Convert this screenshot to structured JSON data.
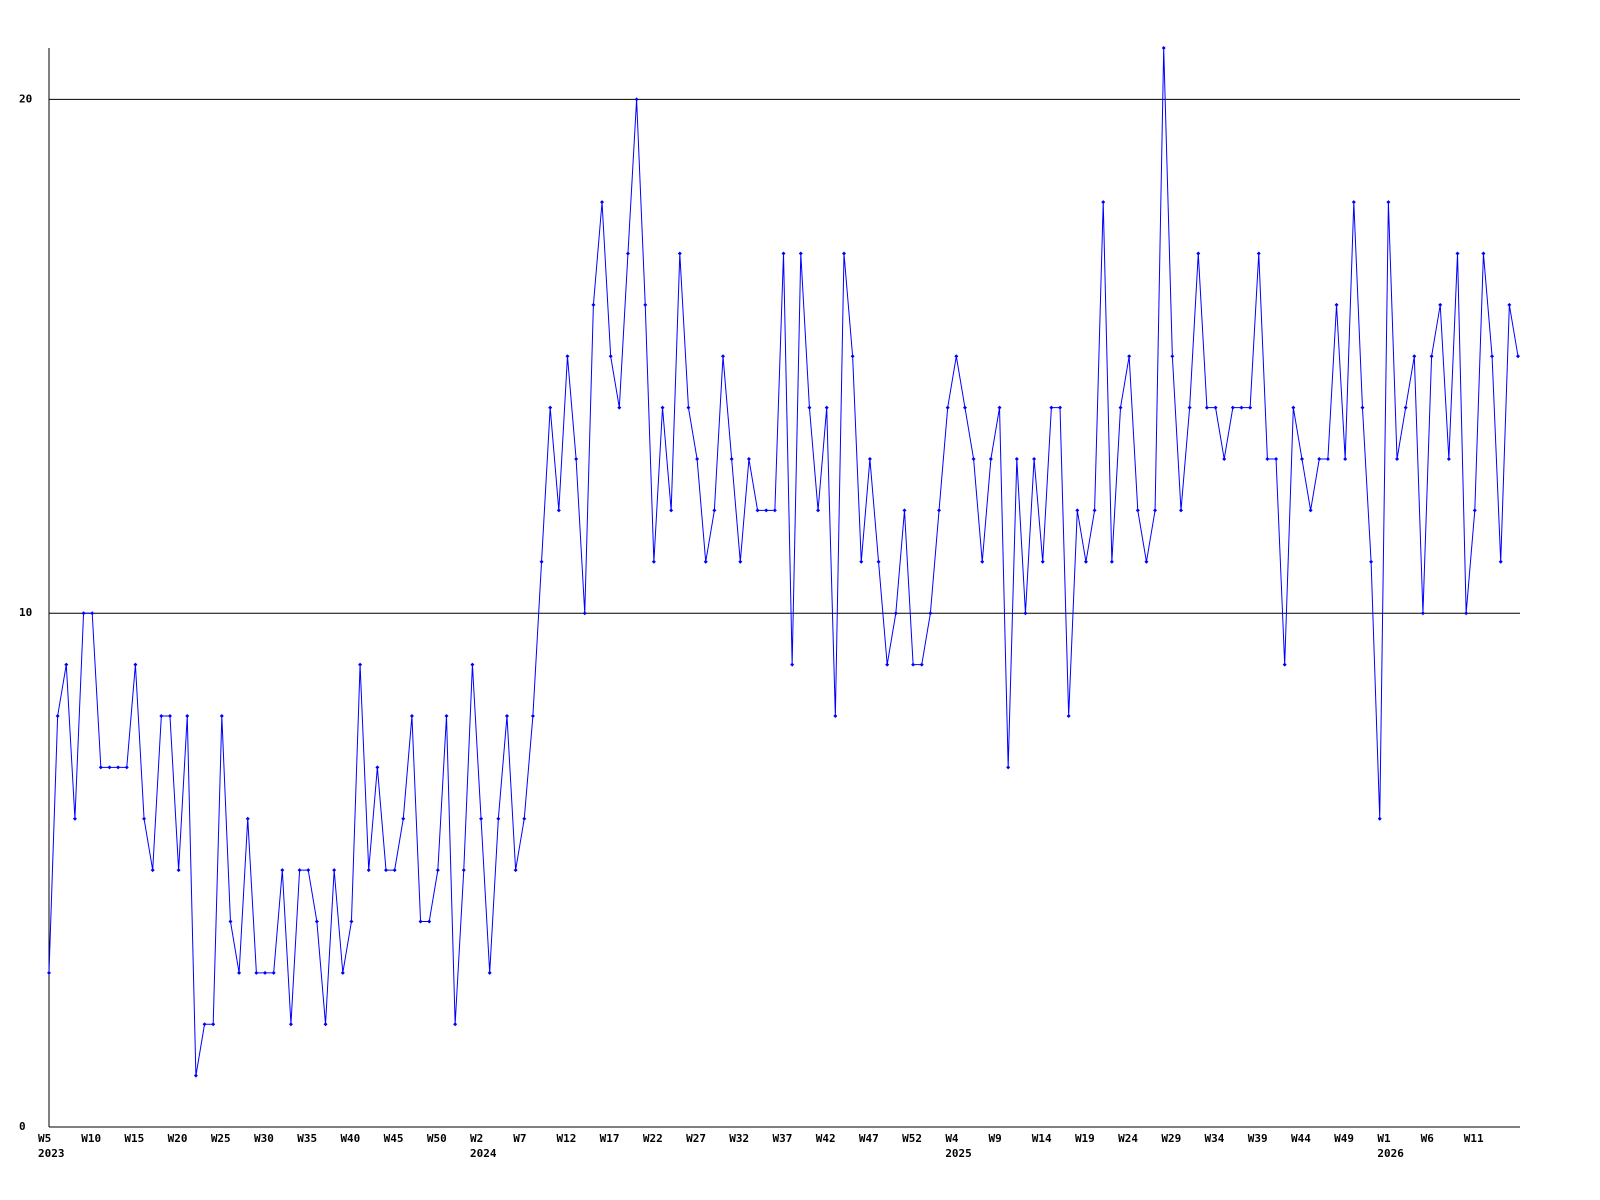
{
  "chart_data": {
    "type": "line",
    "categories": [
      "W5",
      null,
      null,
      null,
      null,
      "W10",
      null,
      null,
      null,
      null,
      "W15",
      null,
      null,
      null,
      null,
      "W20",
      null,
      null,
      null,
      null,
      "W25",
      null,
      null,
      null,
      null,
      "W30",
      null,
      null,
      null,
      null,
      "W35",
      null,
      null,
      null,
      null,
      "W40",
      null,
      null,
      null,
      null,
      "W45",
      null,
      null,
      null,
      null,
      "W50",
      null,
      null,
      null,
      null,
      "W2",
      null,
      null,
      null,
      null,
      "W7",
      null,
      null,
      null,
      null,
      "W12",
      null,
      null,
      null,
      null,
      "W17",
      null,
      null,
      null,
      null,
      "W22",
      null,
      null,
      null,
      null,
      "W27",
      null,
      null,
      null,
      null,
      "W32",
      null,
      null,
      null,
      null,
      "W37",
      null,
      null,
      null,
      null,
      "W42",
      null,
      null,
      null,
      null,
      "W47",
      null,
      null,
      null,
      null,
      "W52",
      null,
      null,
      null,
      null,
      "W4",
      null,
      null,
      null,
      null,
      "W9",
      null,
      null,
      null,
      null,
      "W14",
      null,
      null,
      null,
      null,
      "W19",
      null,
      null,
      null,
      null,
      "W24",
      null,
      null,
      null,
      null,
      "W29",
      null,
      null,
      null,
      null,
      "W34",
      null,
      null,
      null,
      null,
      "W39",
      null,
      null,
      null,
      null,
      "W44",
      null,
      null,
      null,
      null,
      "W49",
      null,
      null,
      null,
      null,
      "W1",
      null,
      null,
      null,
      null,
      "W6",
      null,
      null,
      null,
      null,
      "W11",
      null,
      null,
      null,
      null,
      null
    ],
    "category_years": [
      "2023",
      null,
      null,
      null,
      null,
      null,
      null,
      null,
      null,
      null,
      null,
      null,
      null,
      null,
      null,
      null,
      null,
      null,
      null,
      null,
      null,
      null,
      null,
      null,
      null,
      null,
      null,
      null,
      null,
      null,
      null,
      null,
      null,
      null,
      null,
      null,
      null,
      null,
      null,
      null,
      null,
      null,
      null,
      null,
      null,
      null,
      null,
      null,
      null,
      null,
      "2024",
      null,
      null,
      null,
      null,
      null,
      null,
      null,
      null,
      null,
      null,
      null,
      null,
      null,
      null,
      null,
      null,
      null,
      null,
      null,
      null,
      null,
      null,
      null,
      null,
      null,
      null,
      null,
      null,
      null,
      null,
      null,
      null,
      null,
      null,
      null,
      null,
      null,
      null,
      null,
      null,
      null,
      null,
      null,
      null,
      null,
      null,
      null,
      null,
      null,
      null,
      null,
      null,
      null,
      null,
      "2025",
      null,
      null,
      null,
      null,
      null,
      null,
      null,
      null,
      null,
      null,
      null,
      null,
      null,
      null,
      null,
      null,
      null,
      null,
      null,
      null,
      null,
      null,
      null,
      null,
      null,
      null,
      null,
      null,
      null,
      null,
      null,
      null,
      null,
      null,
      null,
      null,
      null,
      null,
      null,
      null,
      null,
      null,
      null,
      null,
      null,
      null,
      null,
      null,
      null,
      "2026",
      null,
      null,
      null,
      null,
      null,
      null,
      null,
      null,
      null,
      null,
      null,
      null,
      null,
      null,
      null
    ],
    "series": [
      {
        "color": "#0000ff",
        "values": [
          3,
          8,
          9,
          6,
          10,
          10,
          7,
          7,
          7,
          7,
          9,
          6,
          5,
          8,
          8,
          5,
          8,
          1,
          2,
          2,
          8,
          4,
          3,
          6,
          3,
          3,
          3,
          5,
          2,
          5,
          5,
          4,
          2,
          5,
          3,
          4,
          9,
          5,
          7,
          5,
          5,
          6,
          8,
          4,
          4,
          5,
          8,
          2,
          5,
          9,
          6,
          3,
          6,
          8,
          5,
          6,
          8,
          11,
          14,
          12,
          15,
          13,
          10,
          16,
          18,
          15,
          14,
          17,
          20,
          16,
          11,
          14,
          12,
          17,
          14,
          13,
          11,
          12,
          15,
          13,
          11,
          13,
          12,
          12,
          12,
          17,
          9,
          17,
          14,
          12,
          14,
          8,
          17,
          15,
          11,
          13,
          11,
          9,
          10,
          12,
          9,
          9,
          10,
          12,
          14,
          15,
          14,
          13,
          11,
          13,
          14,
          7,
          13,
          10,
          13,
          11,
          14,
          14,
          8,
          12,
          11,
          12,
          18,
          11,
          14,
          15,
          12,
          11,
          12,
          21,
          15,
          12,
          14,
          17,
          14,
          14,
          13,
          14,
          14,
          14,
          17,
          13,
          13,
          9,
          14,
          13,
          12,
          13,
          13,
          16,
          13,
          18,
          14,
          11,
          6,
          18,
          13,
          14,
          15,
          10,
          15,
          16,
          13,
          17,
          10,
          12,
          17,
          15,
          11,
          16,
          15
        ]
      }
    ],
    "ylim": [
      0,
      21
    ],
    "yticks": [
      0,
      10,
      20
    ],
    "grid": true
  }
}
